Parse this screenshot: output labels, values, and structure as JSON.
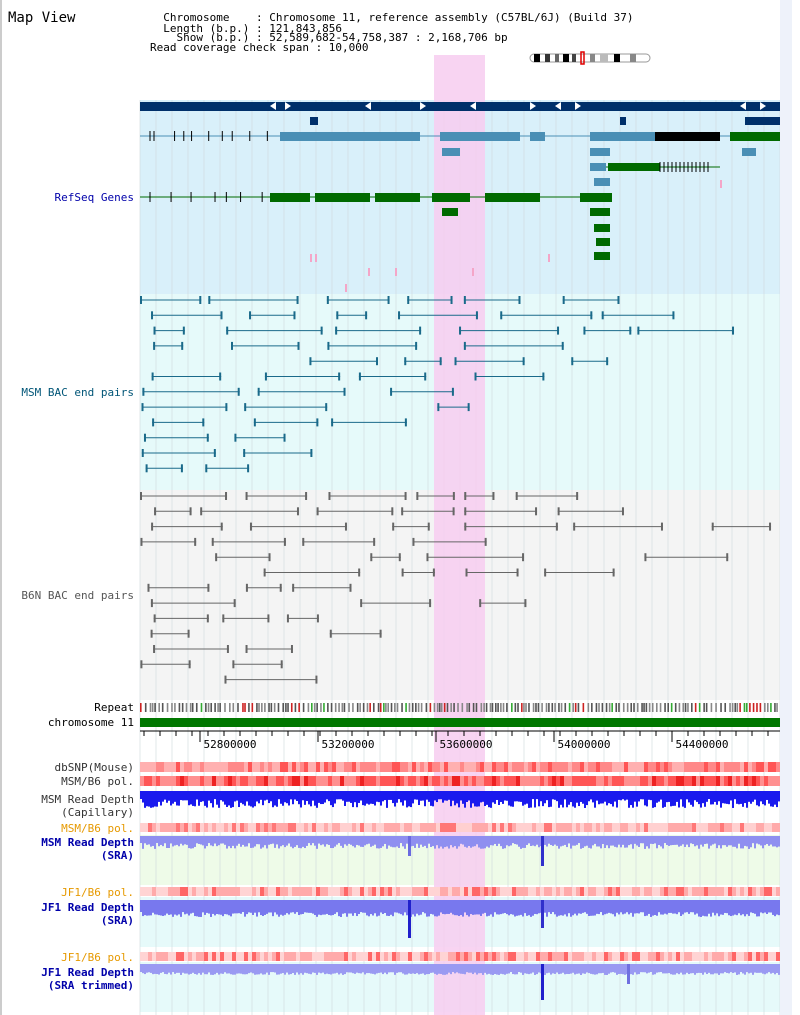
{
  "header": {
    "title": "Map View",
    "info_lines": [
      "  Chromosome    : Chromosome 11, reference assembly (C57BL/6J) (Build 37)",
      "  Length (b.p.) : 121,843,856",
      "    Show (b.p.) : 52,589,682-54,758,387 : 2,168,706 bp",
      "Read coverage check span : 10,000"
    ]
  },
  "tracks": {
    "refseq": "RefSeq Genes",
    "msm_bac": "MSM BAC end pairs",
    "b6n_bac": "B6N BAC end pairs",
    "repeat": "Repeat",
    "chromosome": "chromosome 11",
    "dbsnp": "dbSNP(Mouse)",
    "msm_b6_pol_1": "MSM/B6 pol.",
    "msm_read_depth_cap": "MSM Read Depth",
    "capillary": "(Capillary)",
    "msm_b6_pol_2": "MSM/B6 pol.",
    "msm_read_depth_sra": "MSM Read Depth",
    "sra_1": "(SRA)",
    "jf1_b6_pol_1": "JF1/B6 pol.",
    "jf1_read_depth": "JF1 Read Depth",
    "sra_2": "(SRA)",
    "jf1_b6_pol_2": "JF1/B6 pol.",
    "jf1_read_depth_trim": "JF1 Read Depth",
    "sra_trimmed": "(SRA trimmed)"
  },
  "axis": {
    "ticks": [
      "52800000",
      "53200000",
      "53600000",
      "54000000",
      "54400000"
    ]
  },
  "colors": {
    "refseq_bg": "#d9f0fa",
    "msm_bg": "#e6fafa",
    "highlight": "#f7cdf0",
    "label_blue": "#0000aa",
    "label_teal": "#005577",
    "label_gray": "#555555",
    "label_orange": "#e69900",
    "chrom_green": "#007700",
    "gene_dark": "#00306a",
    "gene_mid": "#4a8fb5",
    "gene_green": "#006a00"
  }
}
